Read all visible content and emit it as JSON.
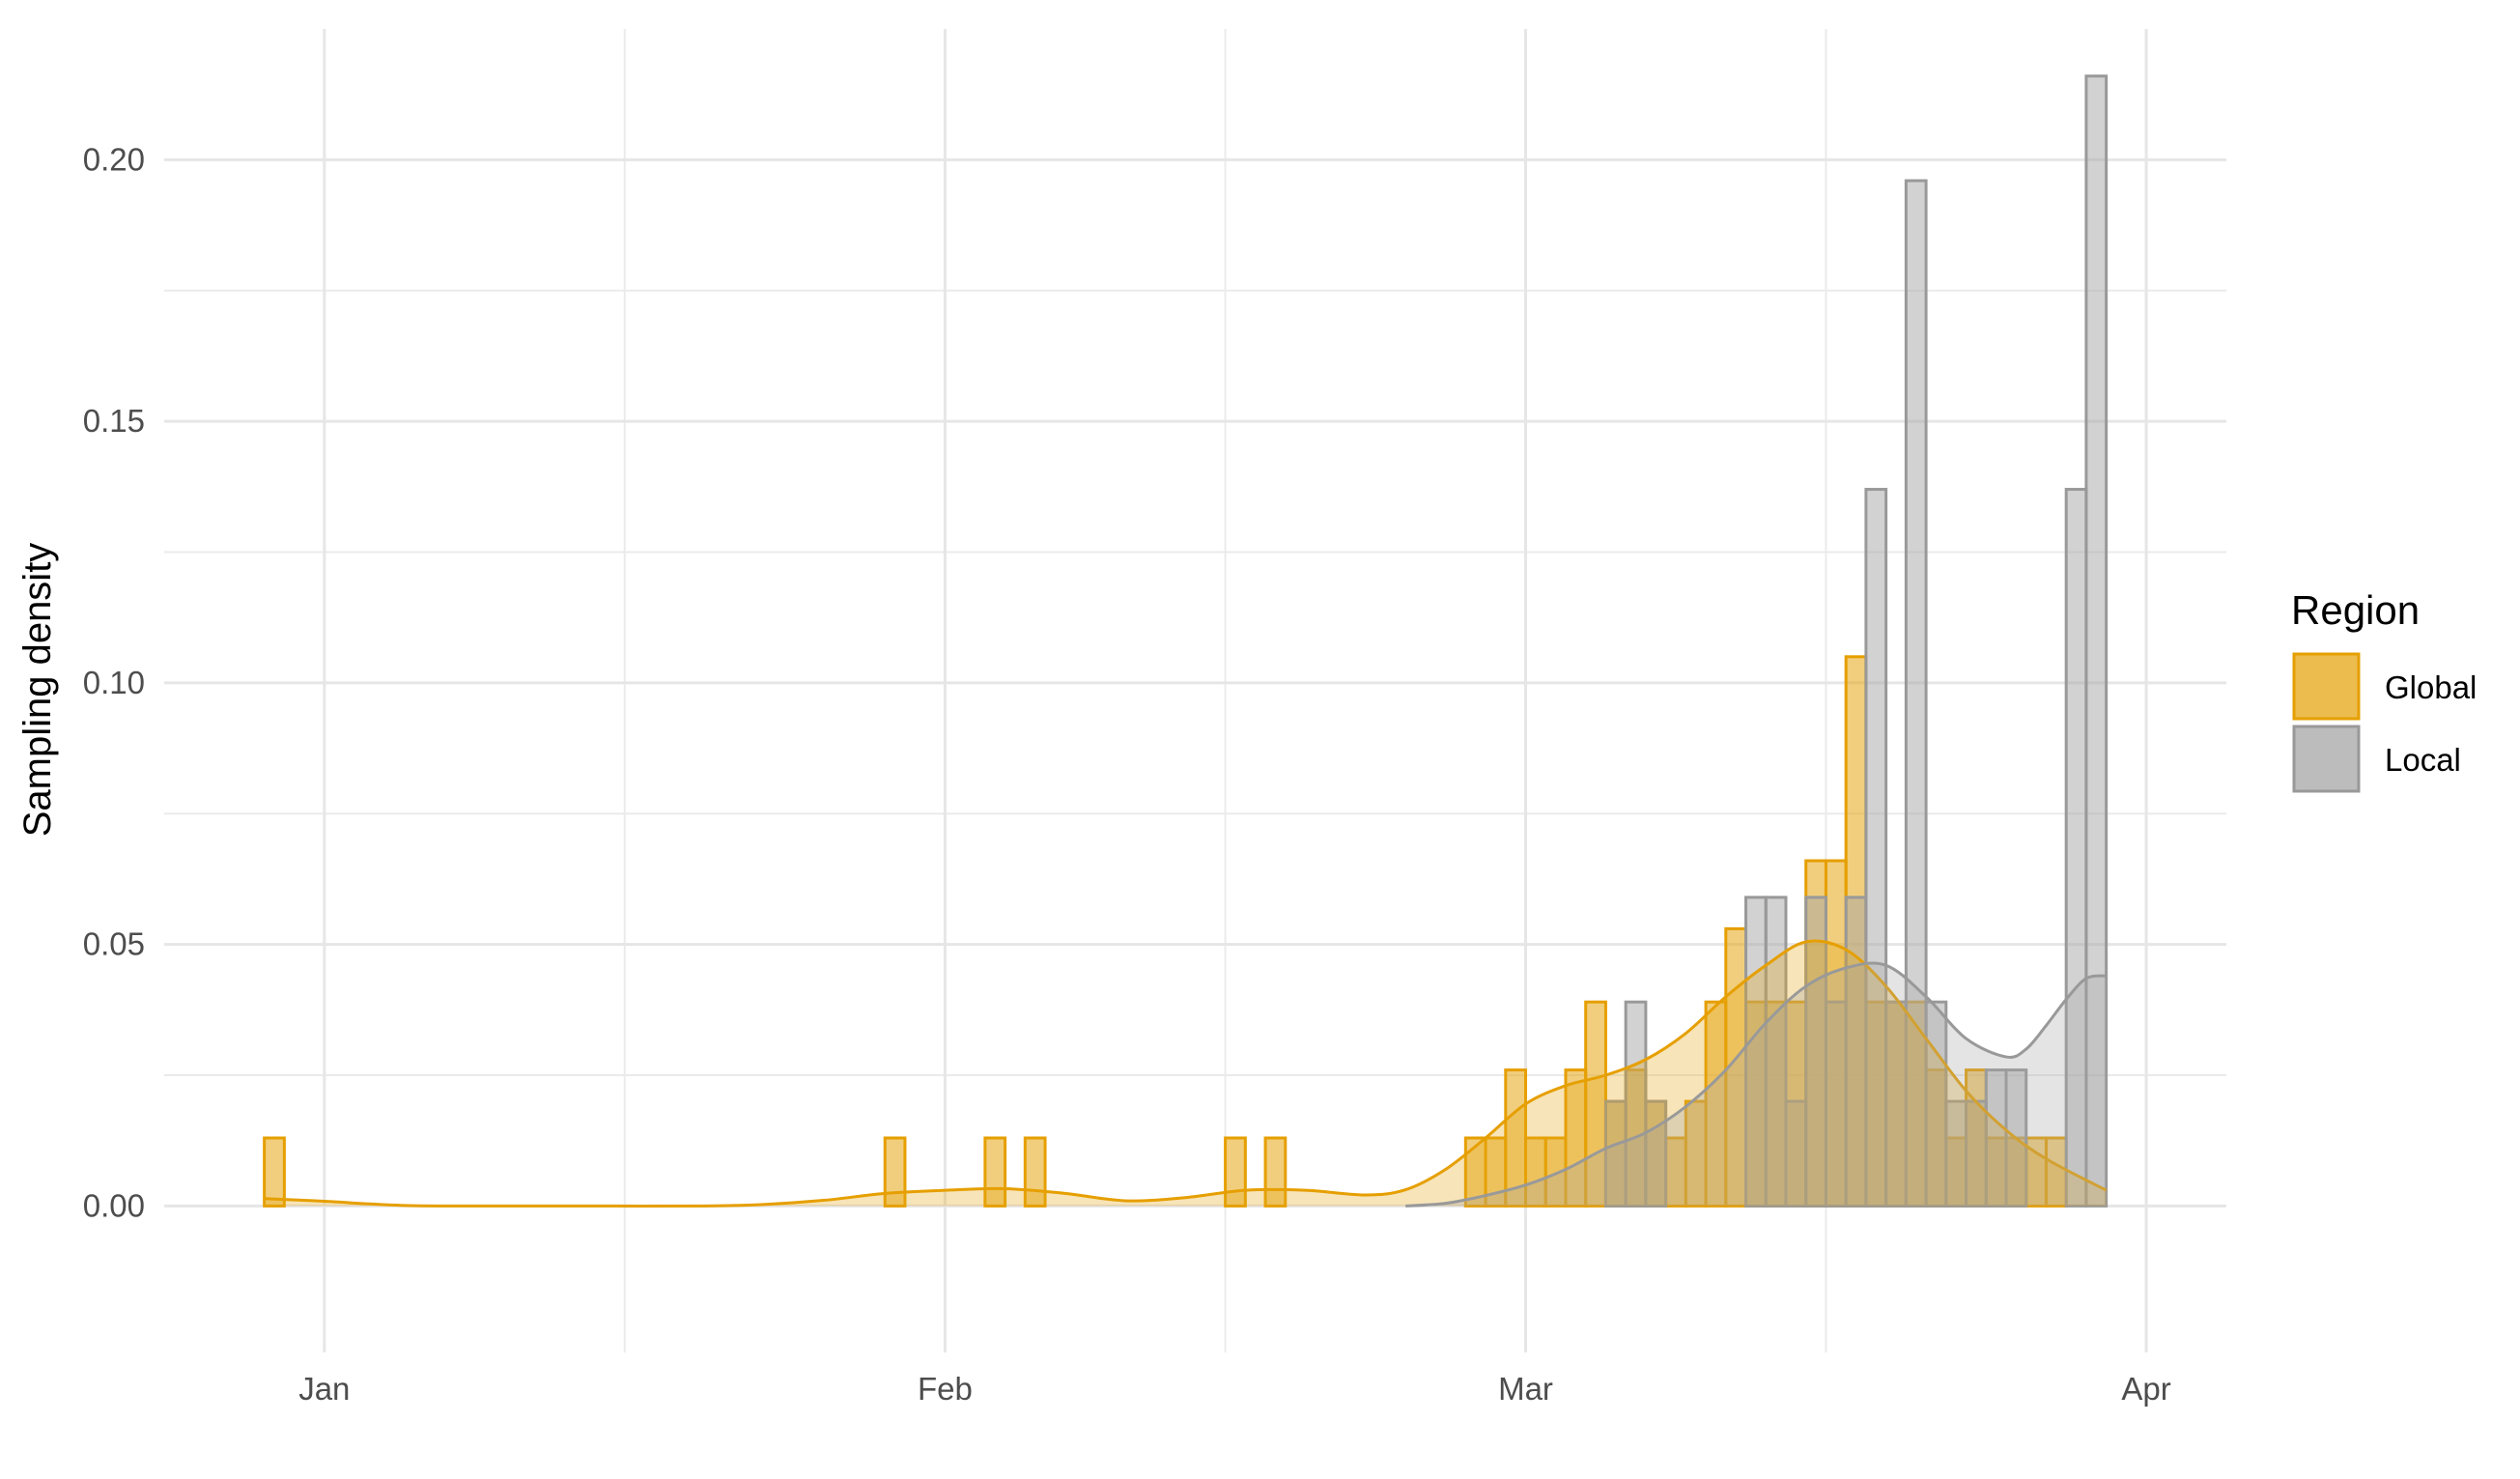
{
  "chart_data": {
    "type": "bar",
    "subtype": "histogram-with-density",
    "title": "",
    "xlabel": "",
    "ylabel": "Sampling density",
    "x_axis_type": "date",
    "xlim": [
      "2019-12-24",
      "2020-04-05"
    ],
    "ylim": [
      -0.028,
      0.225
    ],
    "x_ticks": [
      {
        "date": "2020-01-01",
        "label": "Jan"
      },
      {
        "date": "2020-02-01",
        "label": "Feb"
      },
      {
        "date": "2020-03-01",
        "label": "Mar"
      },
      {
        "date": "2020-04-01",
        "label": "Apr"
      }
    ],
    "x_minor_gridlines": [
      "2020-01-16",
      "2020-02-15",
      "2020-03-16"
    ],
    "y_ticks": [
      0.0,
      0.05,
      0.1,
      0.15,
      0.2
    ],
    "y_tick_labels": [
      "0.00",
      "0.05",
      "0.10",
      "0.15",
      "0.20"
    ],
    "y_minor_gridlines": [
      0.025,
      0.075,
      0.125,
      0.175
    ],
    "grid": true,
    "legend": {
      "title": "Region",
      "position": "right"
    },
    "series": [
      {
        "name": "Global",
        "fill": "#E6A513",
        "fill_opacity": 0.55,
        "stroke": "#E69F00",
        "bins": [
          {
            "start": "2019-12-29",
            "end": "2019-12-30",
            "value": 0.013
          },
          {
            "start": "2020-01-29",
            "end": "2020-01-30",
            "value": 0.013
          },
          {
            "start": "2020-02-03",
            "end": "2020-02-04",
            "value": 0.013
          },
          {
            "start": "2020-02-05",
            "end": "2020-02-06",
            "value": 0.013
          },
          {
            "start": "2020-02-15",
            "end": "2020-02-16",
            "value": 0.013
          },
          {
            "start": "2020-02-17",
            "end": "2020-02-18",
            "value": 0.013
          },
          {
            "start": "2020-02-27",
            "end": "2020-02-28",
            "value": 0.013
          },
          {
            "start": "2020-02-28",
            "end": "2020-02-29",
            "value": 0.013
          },
          {
            "start": "2020-02-29",
            "end": "2020-03-01",
            "value": 0.026
          },
          {
            "start": "2020-03-01",
            "end": "2020-03-02",
            "value": 0.013
          },
          {
            "start": "2020-03-02",
            "end": "2020-03-03",
            "value": 0.013
          },
          {
            "start": "2020-03-03",
            "end": "2020-03-04",
            "value": 0.026
          },
          {
            "start": "2020-03-04",
            "end": "2020-03-05",
            "value": 0.039
          },
          {
            "start": "2020-03-05",
            "end": "2020-03-06",
            "value": 0.02
          },
          {
            "start": "2020-03-06",
            "end": "2020-03-07",
            "value": 0.026
          },
          {
            "start": "2020-03-07",
            "end": "2020-03-08",
            "value": 0.02
          },
          {
            "start": "2020-03-08",
            "end": "2020-03-09",
            "value": 0.013
          },
          {
            "start": "2020-03-09",
            "end": "2020-03-10",
            "value": 0.02
          },
          {
            "start": "2020-03-10",
            "end": "2020-03-11",
            "value": 0.039
          },
          {
            "start": "2020-03-11",
            "end": "2020-03-12",
            "value": 0.053
          },
          {
            "start": "2020-03-12",
            "end": "2020-03-13",
            "value": 0.039
          },
          {
            "start": "2020-03-13",
            "end": "2020-03-14",
            "value": 0.039
          },
          {
            "start": "2020-03-14",
            "end": "2020-03-15",
            "value": 0.039
          },
          {
            "start": "2020-03-15",
            "end": "2020-03-16",
            "value": 0.066
          },
          {
            "start": "2020-03-16",
            "end": "2020-03-17",
            "value": 0.066
          },
          {
            "start": "2020-03-17",
            "end": "2020-03-18",
            "value": 0.105
          },
          {
            "start": "2020-03-18",
            "end": "2020-03-19",
            "value": 0.039
          },
          {
            "start": "2020-03-19",
            "end": "2020-03-20",
            "value": 0.039
          },
          {
            "start": "2020-03-20",
            "end": "2020-03-21",
            "value": 0.039
          },
          {
            "start": "2020-03-21",
            "end": "2020-03-22",
            "value": 0.026
          },
          {
            "start": "2020-03-22",
            "end": "2020-03-23",
            "value": 0.013
          },
          {
            "start": "2020-03-23",
            "end": "2020-03-24",
            "value": 0.026
          },
          {
            "start": "2020-03-24",
            "end": "2020-03-25",
            "value": 0.013
          },
          {
            "start": "2020-03-25",
            "end": "2020-03-26",
            "value": 0.013
          },
          {
            "start": "2020-03-26",
            "end": "2020-03-27",
            "value": 0.013
          },
          {
            "start": "2020-03-27",
            "end": "2020-03-28",
            "value": 0.013
          }
        ],
        "density": {
          "x": [
            "2019-12-29",
            "2020-01-01",
            "2020-01-05",
            "2020-01-10",
            "2020-01-15",
            "2020-01-20",
            "2020-01-23",
            "2020-01-26",
            "2020-01-29",
            "2020-02-01",
            "2020-02-04",
            "2020-02-07",
            "2020-02-10",
            "2020-02-13",
            "2020-02-16",
            "2020-02-19",
            "2020-02-22",
            "2020-02-24",
            "2020-02-26",
            "2020-02-28",
            "2020-03-01",
            "2020-03-03",
            "2020-03-05",
            "2020-03-07",
            "2020-03-09",
            "2020-03-11",
            "2020-03-13",
            "2020-03-15",
            "2020-03-17",
            "2020-03-19",
            "2020-03-21",
            "2020-03-23",
            "2020-03-25",
            "2020-03-27",
            "2020-03-30"
          ],
          "y": [
            0.0014,
            0.0009,
            0.0001,
            0.0,
            0.0,
            0.0,
            0.0003,
            0.0011,
            0.0024,
            0.003,
            0.0033,
            0.0024,
            0.001,
            0.0016,
            0.003,
            0.003,
            0.0021,
            0.0031,
            0.007,
            0.013,
            0.0195,
            0.023,
            0.025,
            0.028,
            0.033,
            0.04,
            0.046,
            0.0505,
            0.049,
            0.042,
            0.032,
            0.022,
            0.0145,
            0.009,
            0.003
          ]
        }
      },
      {
        "name": "Local",
        "fill": "#A6A6A6",
        "fill_opacity": 0.5,
        "stroke": "#999999",
        "bins": [
          {
            "start": "2020-03-05",
            "end": "2020-03-06",
            "value": 0.02
          },
          {
            "start": "2020-03-06",
            "end": "2020-03-07",
            "value": 0.039
          },
          {
            "start": "2020-03-07",
            "end": "2020-03-08",
            "value": 0.02
          },
          {
            "start": "2020-03-12",
            "end": "2020-03-13",
            "value": 0.059
          },
          {
            "start": "2020-03-13",
            "end": "2020-03-14",
            "value": 0.059
          },
          {
            "start": "2020-03-14",
            "end": "2020-03-15",
            "value": 0.02
          },
          {
            "start": "2020-03-15",
            "end": "2020-03-16",
            "value": 0.059
          },
          {
            "start": "2020-03-16",
            "end": "2020-03-17",
            "value": 0.039
          },
          {
            "start": "2020-03-17",
            "end": "2020-03-18",
            "value": 0.059
          },
          {
            "start": "2020-03-18",
            "end": "2020-03-19",
            "value": 0.137
          },
          {
            "start": "2020-03-19",
            "end": "2020-03-20",
            "value": 0.039
          },
          {
            "start": "2020-03-20",
            "end": "2020-03-21",
            "value": 0.196
          },
          {
            "start": "2020-03-21",
            "end": "2020-03-22",
            "value": 0.039
          },
          {
            "start": "2020-03-22",
            "end": "2020-03-23",
            "value": 0.02
          },
          {
            "start": "2020-03-23",
            "end": "2020-03-24",
            "value": 0.02
          },
          {
            "start": "2020-03-24",
            "end": "2020-03-25",
            "value": 0.026
          },
          {
            "start": "2020-03-25",
            "end": "2020-03-26",
            "value": 0.026
          },
          {
            "start": "2020-03-28",
            "end": "2020-03-29",
            "value": 0.137
          },
          {
            "start": "2020-03-29",
            "end": "2020-03-30",
            "value": 0.216
          }
        ],
        "density": {
          "x": [
            "2020-02-24",
            "2020-02-26",
            "2020-02-28",
            "2020-03-01",
            "2020-03-03",
            "2020-03-05",
            "2020-03-07",
            "2020-03-09",
            "2020-03-11",
            "2020-03-13",
            "2020-03-15",
            "2020-03-17",
            "2020-03-19",
            "2020-03-21",
            "2020-03-23",
            "2020-03-25",
            "2020-03-26",
            "2020-03-27",
            "2020-03-28",
            "2020-03-29",
            "2020-03-30"
          ],
          "y": [
            0.0,
            0.0005,
            0.002,
            0.004,
            0.007,
            0.011,
            0.014,
            0.019,
            0.026,
            0.035,
            0.042,
            0.0455,
            0.046,
            0.04,
            0.032,
            0.0285,
            0.03,
            0.0345,
            0.0395,
            0.0435,
            0.044
          ]
        }
      }
    ]
  }
}
